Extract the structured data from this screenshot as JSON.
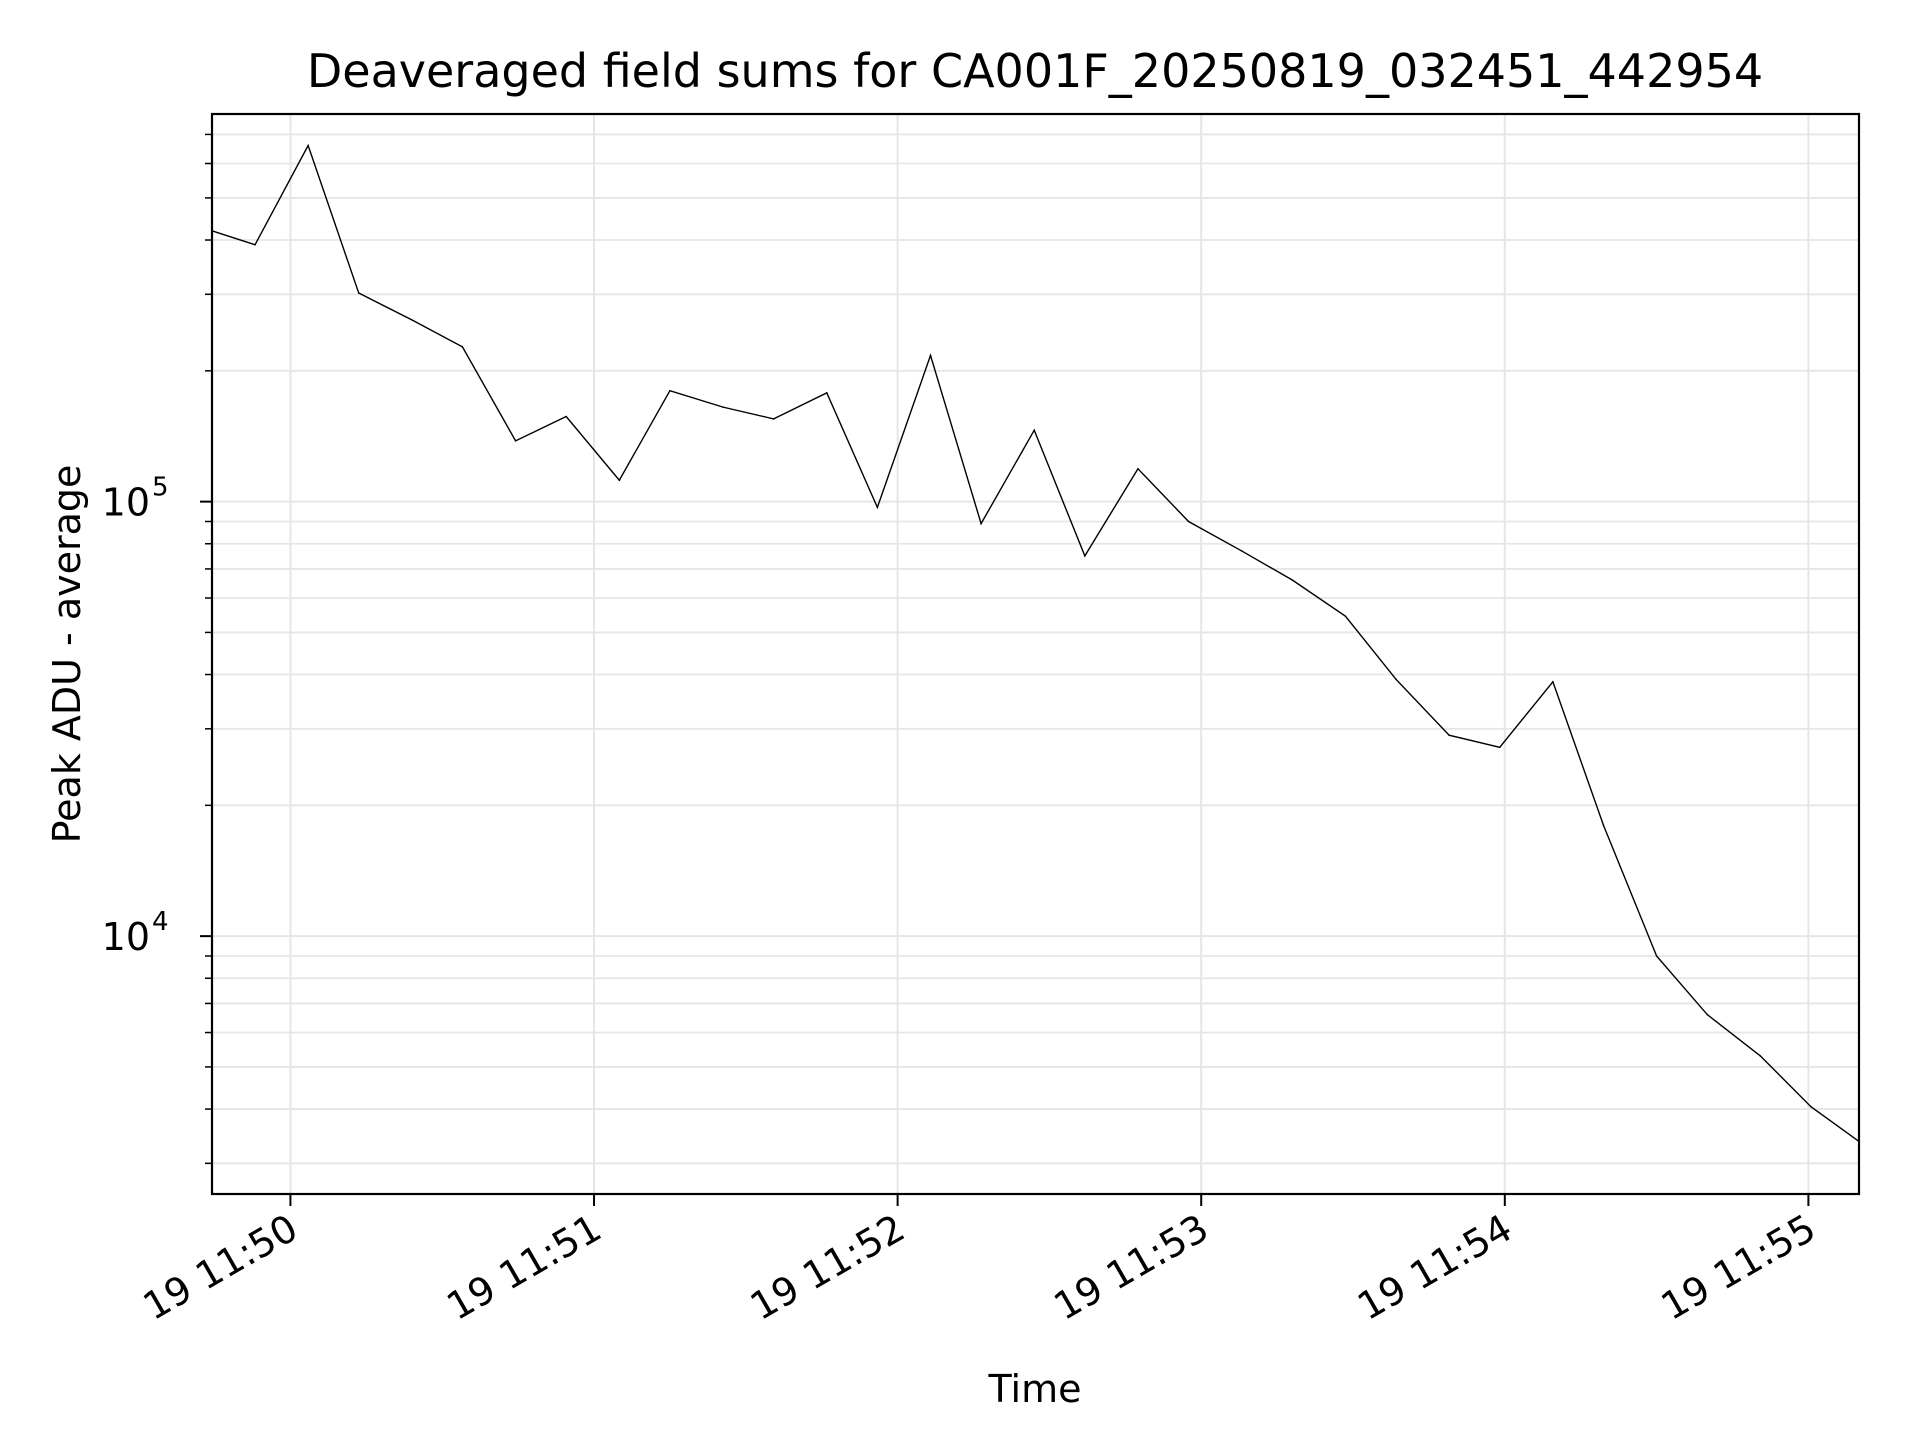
{
  "chart_data": {
    "type": "line",
    "title": "Deaveraged field sums for CA001F_20250819_032451_442954",
    "xlabel": "Time",
    "ylabel": "Peak ADU - average",
    "yscale": "log",
    "ylim": [
      2550,
      780000
    ],
    "xlim": [
      "19 11:49:44.5",
      "19 11:55:10"
    ],
    "grid": true,
    "x_ticks": [
      {
        "label": "19 11:50",
        "t": "11:50:00"
      },
      {
        "label": "19 11:51",
        "t": "11:51:00"
      },
      {
        "label": "19 11:52",
        "t": "11:52:00"
      },
      {
        "label": "19 11:53",
        "t": "11:53:00"
      },
      {
        "label": "19 11:54",
        "t": "11:54:00"
      },
      {
        "label": "19 11:55",
        "t": "11:55:00"
      }
    ],
    "y_ticks": [
      {
        "base": "10",
        "exp": "4",
        "value": 10000
      },
      {
        "base": "10",
        "exp": "5",
        "value": 100000
      }
    ],
    "series": [
      {
        "color": "#000000",
        "points": [
          {
            "t": "11:49:44.5",
            "y": 420000
          },
          {
            "t": "11:49:53",
            "y": 390000
          },
          {
            "t": "11:50:03.5",
            "y": 660000
          },
          {
            "t": "11:50:13.5",
            "y": 302000
          },
          {
            "t": "11:50:24",
            "y": 262000
          },
          {
            "t": "11:50:34",
            "y": 227000
          },
          {
            "t": "11:50:44.5",
            "y": 138000
          },
          {
            "t": "11:50:54.5",
            "y": 157000
          },
          {
            "t": "11:51:05",
            "y": 112000
          },
          {
            "t": "11:51:15",
            "y": 180000
          },
          {
            "t": "11:51:25.5",
            "y": 165000
          },
          {
            "t": "11:51:35.5",
            "y": 155000
          },
          {
            "t": "11:51:46",
            "y": 178000
          },
          {
            "t": "11:51:56",
            "y": 97000
          },
          {
            "t": "11:52:06.5",
            "y": 217000
          },
          {
            "t": "11:52:16.5",
            "y": 89000
          },
          {
            "t": "11:52:27",
            "y": 146000
          },
          {
            "t": "11:52:37",
            "y": 75000
          },
          {
            "t": "11:52:47.5",
            "y": 119000
          },
          {
            "t": "11:52:57.5",
            "y": 90000
          },
          {
            "t": "11:53:08",
            "y": 77000
          },
          {
            "t": "11:53:18",
            "y": 66000
          },
          {
            "t": "11:53:28.5",
            "y": 54500
          },
          {
            "t": "11:53:38.5",
            "y": 39000
          },
          {
            "t": "11:53:49",
            "y": 29000
          },
          {
            "t": "11:53:59",
            "y": 27200
          },
          {
            "t": "11:54:09.5",
            "y": 38500
          },
          {
            "t": "11:54:19.5",
            "y": 18000
          },
          {
            "t": "11:54:30",
            "y": 9000
          },
          {
            "t": "11:54:40",
            "y": 6600
          },
          {
            "t": "11:54:50.5",
            "y": 5300
          },
          {
            "t": "11:55:00.5",
            "y": 4050
          },
          {
            "t": "11:55:10",
            "y": 3370
          }
        ]
      }
    ]
  }
}
